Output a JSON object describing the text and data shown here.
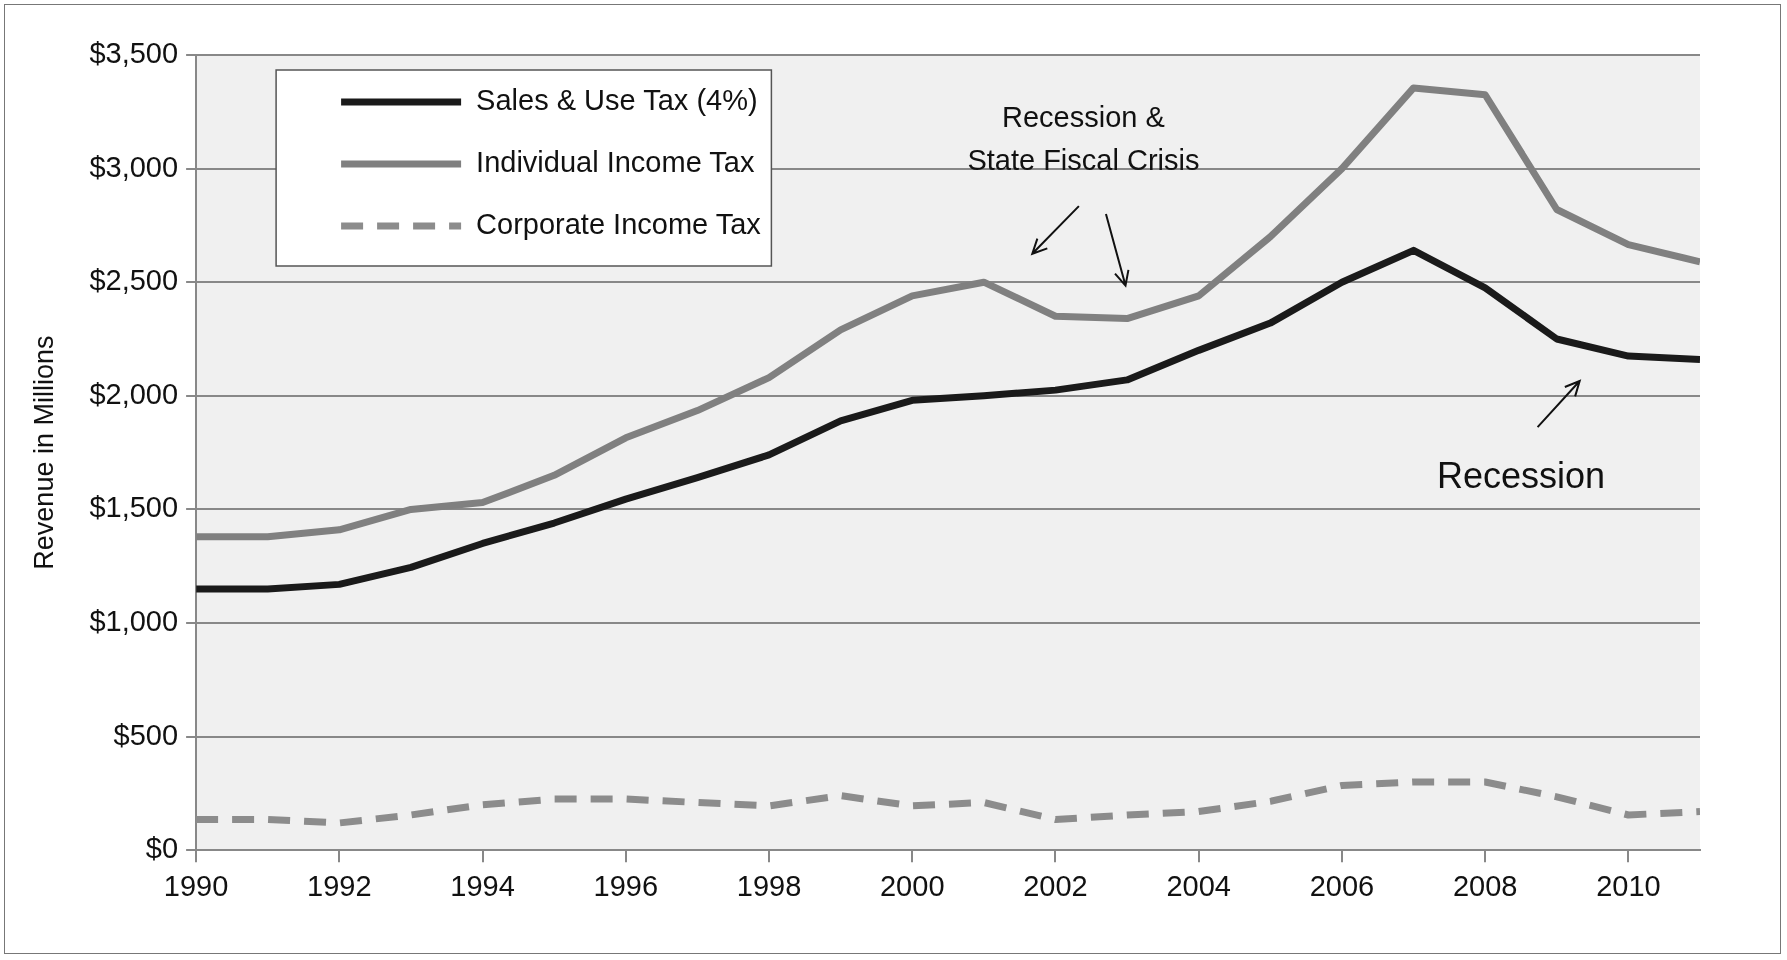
{
  "chart_data": {
    "type": "line",
    "ylabel": "Revenue in Millions",
    "x": [
      1990,
      1991,
      1992,
      1993,
      1994,
      1995,
      1996,
      1997,
      1998,
      1999,
      2000,
      2001,
      2002,
      2003,
      2004,
      2005,
      2006,
      2007,
      2008,
      2009,
      2010,
      2011
    ],
    "series": [
      {
        "name": "Sales & Use Tax (4%)",
        "color": "#1a1a1a",
        "line_style": "solid",
        "values": [
          1150,
          1150,
          1170,
          1245,
          1350,
          1440,
          1545,
          1640,
          1740,
          1890,
          1980,
          2000,
          2025,
          2070,
          2200,
          2320,
          2500,
          2640,
          2475,
          2250,
          2175,
          2160
        ]
      },
      {
        "name": "Individual Income Tax",
        "color": "#808080",
        "line_style": "solid",
        "values": [
          1380,
          1380,
          1410,
          1500,
          1530,
          1650,
          1815,
          1935,
          2080,
          2290,
          2440,
          2500,
          2350,
          2340,
          2440,
          2700,
          3000,
          3355,
          3325,
          2820,
          2665,
          2590
        ]
      },
      {
        "name": "Corporate Income Tax",
        "color": "#8c8c8c",
        "line_style": "dashed",
        "values": [
          135,
          135,
          120,
          155,
          200,
          225,
          225,
          210,
          195,
          240,
          195,
          210,
          135,
          155,
          170,
          215,
          285,
          300,
          300,
          235,
          155,
          170
        ]
      }
    ],
    "xlim": [
      1990,
      2011
    ],
    "xticks": [
      1990,
      1992,
      1994,
      1996,
      1998,
      2000,
      2002,
      2004,
      2006,
      2008,
      2010
    ],
    "ylim": [
      0,
      3500
    ],
    "yticks": [
      {
        "value": 0,
        "label": "$0"
      },
      {
        "value": 500,
        "label": "$500"
      },
      {
        "value": 1000,
        "label": "$1,000"
      },
      {
        "value": 1500,
        "label": "$1,500"
      },
      {
        "value": 2000,
        "label": "$2,000"
      },
      {
        "value": 2500,
        "label": "$2,500"
      },
      {
        "value": 3000,
        "label": "$3,000"
      },
      {
        "value": 3500,
        "label": "$3,500"
      }
    ],
    "grid": "y",
    "legend": "top left",
    "marker": "none",
    "annotations": [
      "Recession &\nState Fiscal Crisis",
      "Recession"
    ]
  }
}
